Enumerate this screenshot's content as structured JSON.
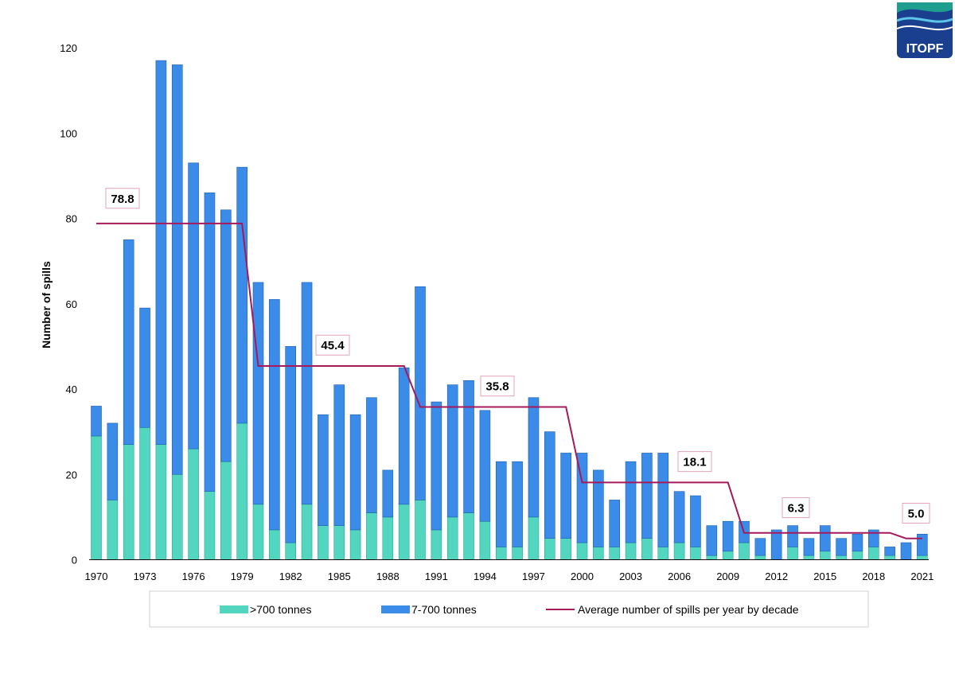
{
  "chart_data": {
    "type": "bar",
    "stacked": true,
    "x": [
      1970,
      1971,
      1972,
      1973,
      1974,
      1975,
      1976,
      1977,
      1978,
      1979,
      1980,
      1981,
      1982,
      1983,
      1984,
      1985,
      1986,
      1987,
      1988,
      1989,
      1990,
      1991,
      1992,
      1993,
      1994,
      1995,
      1996,
      1997,
      1998,
      1999,
      2000,
      2001,
      2002,
      2003,
      2004,
      2005,
      2006,
      2007,
      2008,
      2009,
      2010,
      2011,
      2012,
      2013,
      2014,
      2015,
      2016,
      2017,
      2018,
      2019,
      2020,
      2021
    ],
    "x_tick_labels": [
      "1970",
      "1973",
      "1976",
      "1979",
      "1982",
      "1985",
      "1988",
      "1991",
      "1994",
      "1997",
      "2000",
      "2003",
      "2006",
      "2009",
      "2012",
      "2015",
      "2018",
      "2021"
    ],
    "series": [
      {
        "name": ">700 tonnes",
        "color": "#52d6bf",
        "values": [
          29,
          14,
          27,
          31,
          27,
          20,
          26,
          16,
          23,
          32,
          13,
          7,
          4,
          13,
          8,
          8,
          7,
          11,
          10,
          13,
          14,
          7,
          10,
          11,
          9,
          3,
          3,
          10,
          5,
          5,
          4,
          3,
          3,
          4,
          5,
          3,
          4,
          3,
          1,
          2,
          4,
          1,
          0,
          3,
          1,
          2,
          1,
          2,
          3,
          1,
          0,
          1
        ]
      },
      {
        "name": "7-700 tonnes",
        "color": "#3a8ce8",
        "values": [
          7,
          18,
          48,
          28,
          90,
          96,
          67,
          70,
          59,
          60,
          52,
          54,
          46,
          52,
          26,
          33,
          27,
          27,
          11,
          32,
          50,
          30,
          31,
          31,
          26,
          20,
          20,
          28,
          25,
          20,
          21,
          18,
          11,
          19,
          20,
          22,
          12,
          12,
          7,
          7,
          5,
          4,
          7,
          5,
          4,
          6,
          4,
          4,
          4,
          2,
          4,
          5
        ]
      }
    ],
    "average_line": {
      "name": "Average number of spills per year by decade",
      "color": "#a6195a",
      "decades": [
        {
          "start": 1970,
          "end": 1979,
          "value": 78.8,
          "label": "78.8"
        },
        {
          "start": 1980,
          "end": 1989,
          "value": 45.4,
          "label": "45.4"
        },
        {
          "start": 1990,
          "end": 1999,
          "value": 35.8,
          "label": "35.8"
        },
        {
          "start": 2000,
          "end": 2009,
          "value": 18.1,
          "label": "18.1"
        },
        {
          "start": 2010,
          "end": 2019,
          "value": 6.3,
          "label": "6.3"
        },
        {
          "start": 2020,
          "end": 2021,
          "value": 5.0,
          "label": "5.0"
        }
      ]
    },
    "ylabel": "Number of spills",
    "ylim": [
      0,
      120
    ],
    "y_ticks": [
      "0",
      "20",
      "40",
      "60",
      "80",
      "100",
      "120"
    ],
    "grid": false,
    "legend_position": "bottom",
    "legend": [
      ">700 tonnes",
      "7-700 tonnes",
      "Average number of spills per year by decade"
    ]
  },
  "logo": {
    "text": "ITOPF",
    "color": "#1b3f8f"
  }
}
